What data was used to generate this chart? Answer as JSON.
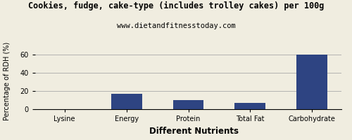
{
  "title": "Cookies, fudge, cake-type (includes trolley cakes) per 100g",
  "subtitle": "www.dietandfitnesstoday.com",
  "categories": [
    "Lysine",
    "Energy",
    "Protein",
    "Total Fat",
    "Carbohydrate"
  ],
  "values": [
    0,
    17,
    10,
    7,
    60
  ],
  "bar_color": "#2e4482",
  "xlabel": "Different Nutrients",
  "ylabel": "Percentage of RDH (%)",
  "ylim": [
    0,
    65
  ],
  "yticks": [
    0,
    20,
    40,
    60
  ],
  "background_color": "#f0ede0",
  "title_fontsize": 8.5,
  "subtitle_fontsize": 7.5,
  "xlabel_fontsize": 8.5,
  "ylabel_fontsize": 7,
  "tick_fontsize": 7,
  "grid_color": "#aaaaaa"
}
